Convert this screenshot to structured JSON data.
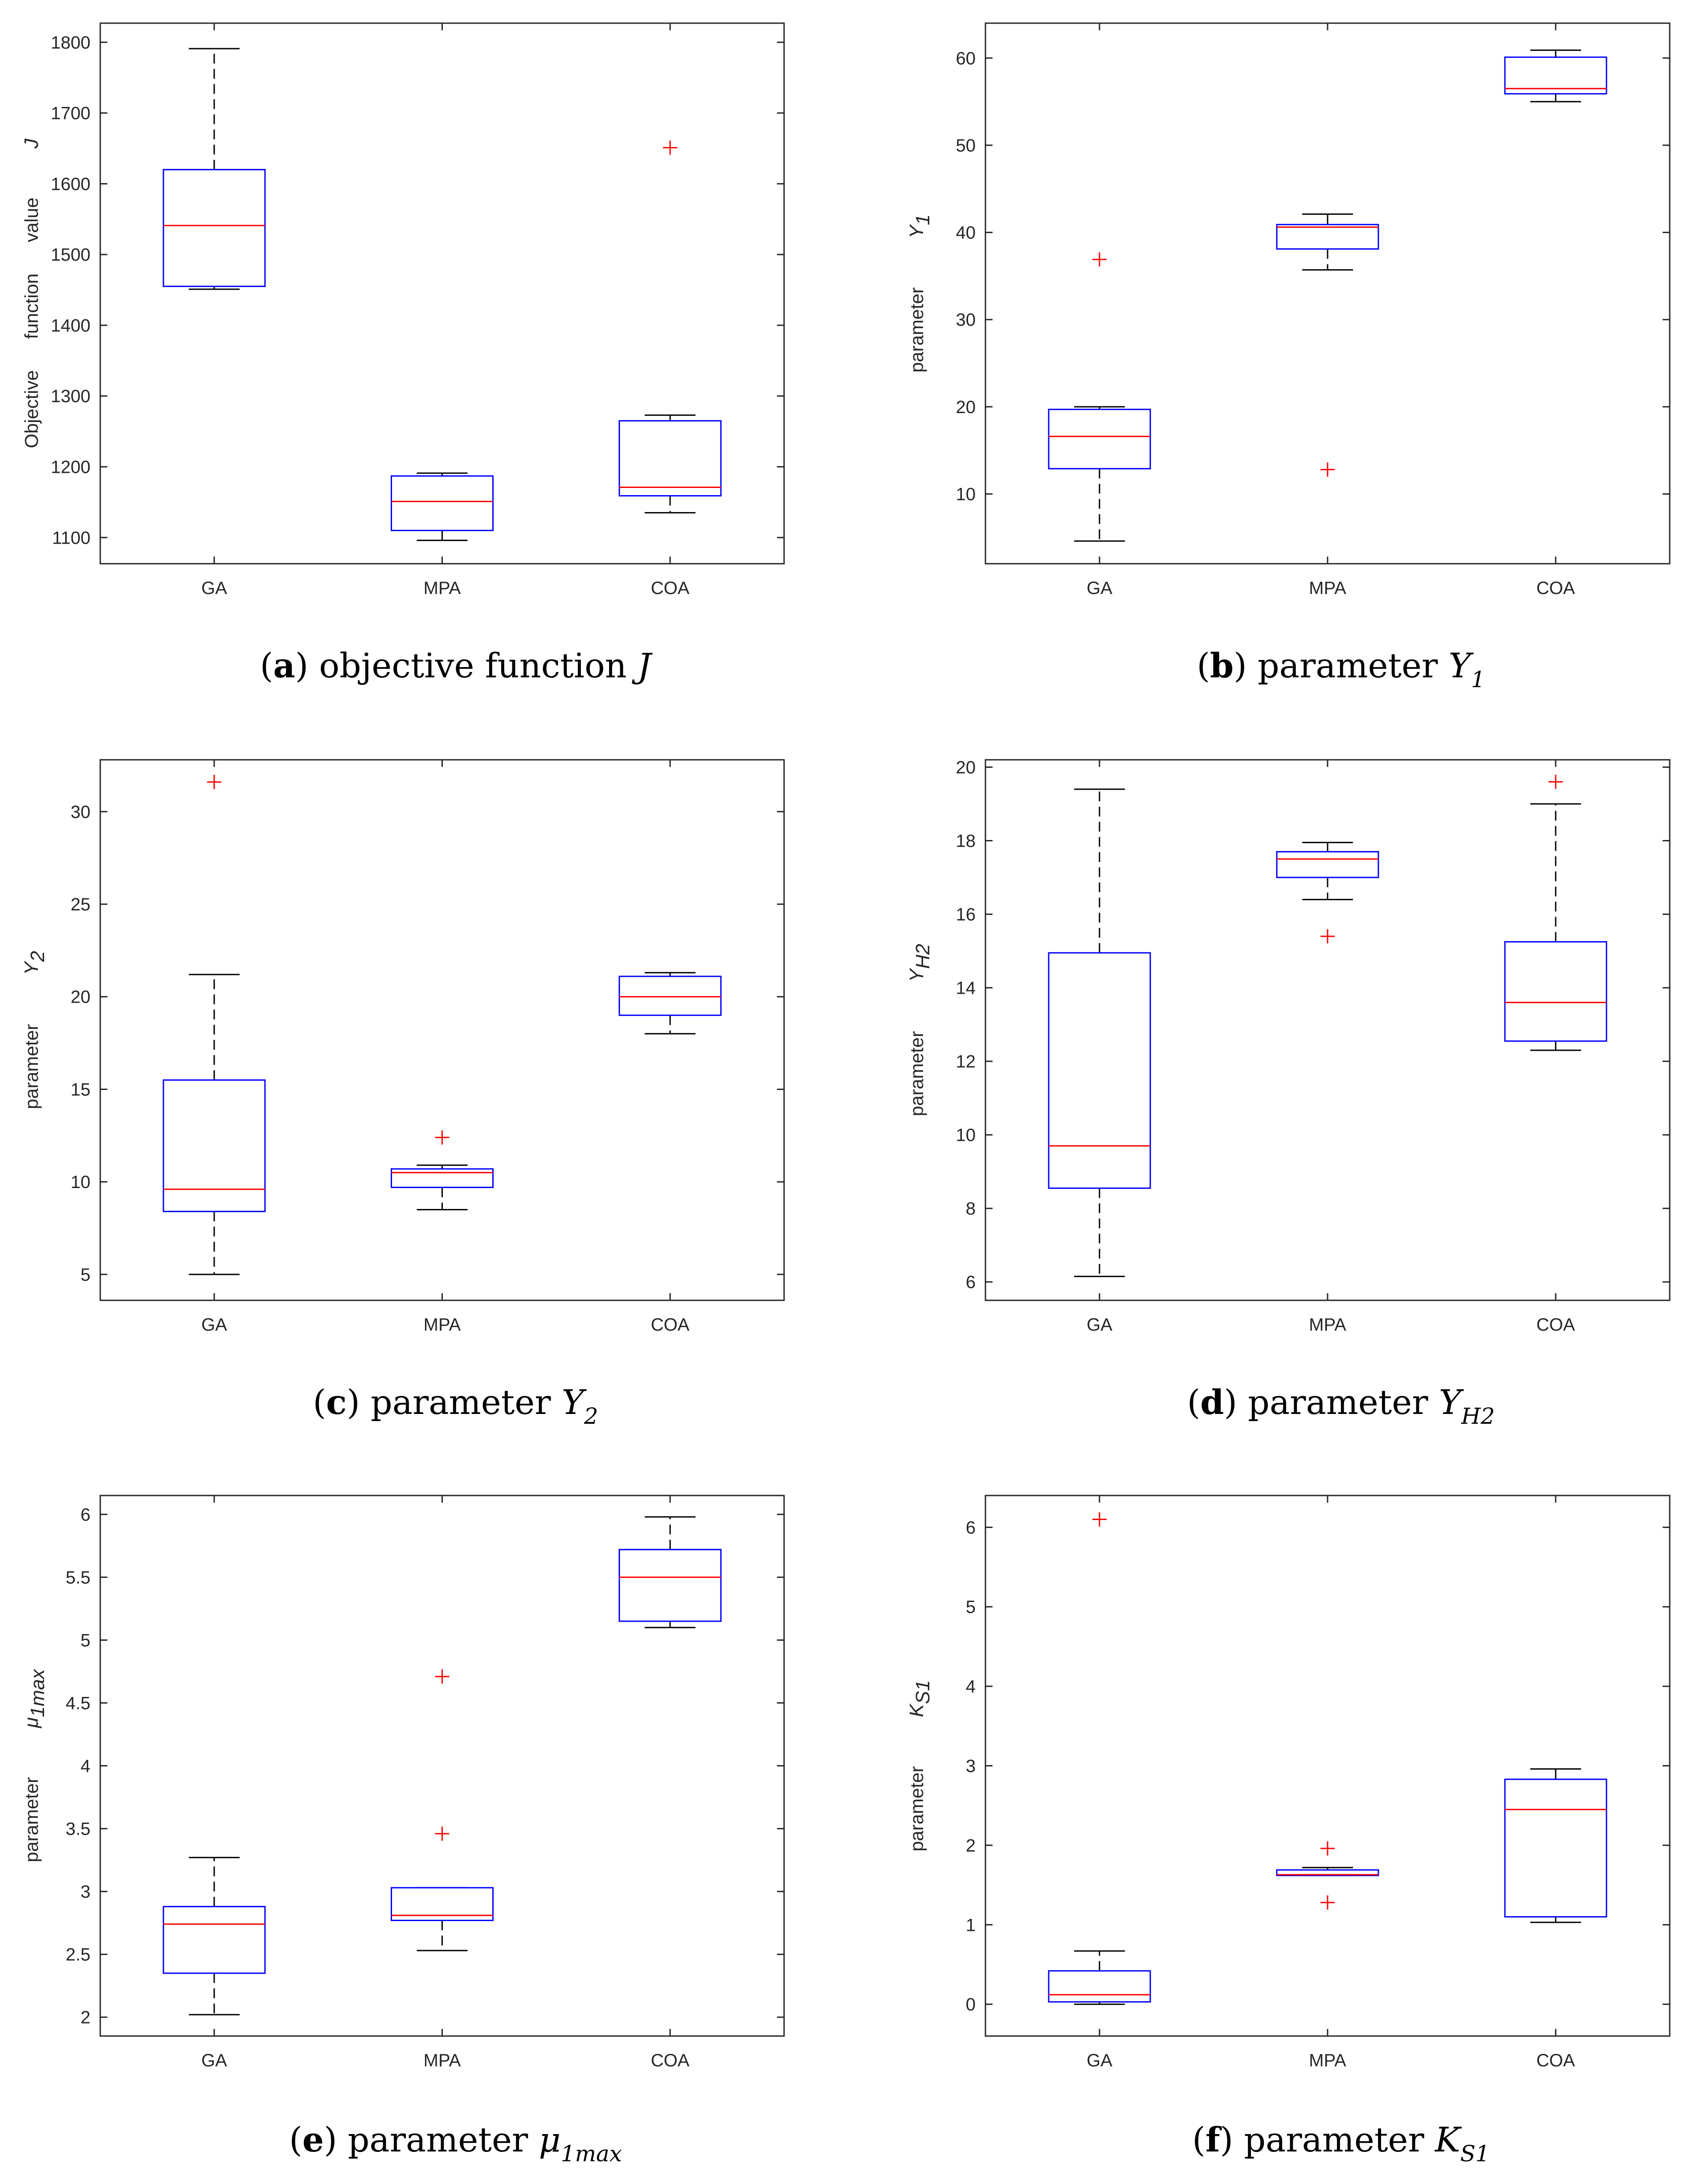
{
  "chart_data": [
    {
      "id": "a",
      "type": "box",
      "categories": [
        "GA",
        "MPA",
        "COA"
      ],
      "ylim": [
        1063,
        1827
      ],
      "yticks": [
        1100,
        1200,
        1300,
        1400,
        1500,
        1600,
        1700,
        1800
      ],
      "ylabel_words": [
        "Objective",
        "function",
        "value"
      ],
      "ylabel_symbol": "J",
      "ylabel_sub": "",
      "caption": {
        "letter": "a",
        "text": "objective function",
        "symbol": "J",
        "sub": ""
      },
      "boxes": [
        {
          "q1": 1455,
          "median": 1541,
          "q3": 1620,
          "whisker_low": 1451,
          "whisker_high": 1791,
          "outliers": []
        },
        {
          "q1": 1110,
          "median": 1151,
          "q3": 1187,
          "whisker_low": 1096,
          "whisker_high": 1191,
          "outliers": []
        },
        {
          "q1": 1159,
          "median": 1171,
          "q3": 1265,
          "whisker_low": 1135,
          "whisker_high": 1273,
          "outliers": [
            1651
          ]
        }
      ]
    },
    {
      "id": "b",
      "type": "box",
      "categories": [
        "GA",
        "MPA",
        "COA"
      ],
      "ylim": [
        2,
        64
      ],
      "yticks": [
        10,
        20,
        30,
        40,
        50,
        60
      ],
      "ylabel_words": [
        "parameter"
      ],
      "ylabel_symbol": "Y",
      "ylabel_sub": "1",
      "caption": {
        "letter": "b",
        "text": "parameter",
        "symbol": "Y",
        "sub": "1"
      },
      "boxes": [
        {
          "q1": 12.9,
          "median": 16.6,
          "q3": 19.7,
          "whisker_low": 4.6,
          "whisker_high": 20,
          "outliers": [
            36.9
          ]
        },
        {
          "q1": 38.1,
          "median": 40.6,
          "q3": 40.9,
          "whisker_low": 35.7,
          "whisker_high": 42.1,
          "outliers": [
            12.8
          ]
        },
        {
          "q1": 55.9,
          "median": 56.5,
          "q3": 60.1,
          "whisker_low": 55,
          "whisker_high": 60.9,
          "outliers": []
        }
      ]
    },
    {
      "id": "c",
      "type": "box",
      "categories": [
        "GA",
        "MPA",
        "COA"
      ],
      "ylim": [
        3.6,
        32.8
      ],
      "yticks": [
        5,
        10,
        15,
        20,
        25,
        30
      ],
      "ylabel_words": [
        "parameter"
      ],
      "ylabel_symbol": "Y",
      "ylabel_sub": "2",
      "caption": {
        "letter": "c",
        "text": "parameter",
        "symbol": "Y",
        "sub": "2"
      },
      "boxes": [
        {
          "q1": 8.4,
          "median": 9.6,
          "q3": 15.5,
          "whisker_low": 5,
          "whisker_high": 21.2,
          "outliers": [
            31.6
          ]
        },
        {
          "q1": 9.7,
          "median": 10.5,
          "q3": 10.7,
          "whisker_low": 8.5,
          "whisker_high": 10.9,
          "outliers": [
            12.4
          ]
        },
        {
          "q1": 19,
          "median": 20,
          "q3": 21.1,
          "whisker_low": 18,
          "whisker_high": 21.3,
          "outliers": []
        }
      ]
    },
    {
      "id": "d",
      "type": "box",
      "categories": [
        "GA",
        "MPA",
        "COA"
      ],
      "ylim": [
        5.5,
        20.2
      ],
      "yticks": [
        6,
        8,
        10,
        12,
        14,
        16,
        18,
        20
      ],
      "ylabel_words": [
        "parameter"
      ],
      "ylabel_symbol": "Y",
      "ylabel_sub": "H2",
      "caption": {
        "letter": "d",
        "text": "parameter",
        "symbol": "Y",
        "sub": "H2"
      },
      "boxes": [
        {
          "q1": 8.55,
          "median": 9.7,
          "q3": 14.95,
          "whisker_low": 6.15,
          "whisker_high": 19.4,
          "outliers": []
        },
        {
          "q1": 17,
          "median": 17.5,
          "q3": 17.7,
          "whisker_low": 16.4,
          "whisker_high": 17.95,
          "outliers": [
            15.4
          ]
        },
        {
          "q1": 12.55,
          "median": 13.6,
          "q3": 15.25,
          "whisker_low": 12.3,
          "whisker_high": 19,
          "outliers": [
            19.6
          ]
        }
      ]
    },
    {
      "id": "e",
      "type": "box",
      "categories": [
        "GA",
        "MPA",
        "COA"
      ],
      "ylim": [
        1.85,
        6.15
      ],
      "yticks": [
        2,
        2.5,
        3,
        3.5,
        4,
        4.5,
        5,
        5.5,
        6
      ],
      "ylabel_words": [
        "parameter"
      ],
      "ylabel_symbol": "μ",
      "ylabel_sub": "1max",
      "caption": {
        "letter": "e",
        "text": "parameter",
        "symbol": "μ",
        "sub": "1max"
      },
      "boxes": [
        {
          "q1": 2.35,
          "median": 2.74,
          "q3": 2.88,
          "whisker_low": 2.02,
          "whisker_high": 3.27,
          "outliers": []
        },
        {
          "q1": 2.77,
          "median": 2.81,
          "q3": 3.03,
          "whisker_low": 2.53,
          "whisker_high": 3.03,
          "outliers": [
            3.46,
            4.71
          ]
        },
        {
          "q1": 5.15,
          "median": 5.5,
          "q3": 5.72,
          "whisker_low": 5.1,
          "whisker_high": 5.98,
          "outliers": []
        }
      ]
    },
    {
      "id": "f",
      "type": "box",
      "categories": [
        "GA",
        "MPA",
        "COA"
      ],
      "ylim": [
        -0.4,
        6.4
      ],
      "yticks": [
        0,
        1,
        2,
        3,
        4,
        5,
        6
      ],
      "ylabel_words": [
        "parameter"
      ],
      "ylabel_symbol": "K",
      "ylabel_sub": "S1",
      "caption": {
        "letter": "f",
        "text": "parameter",
        "symbol": "K",
        "sub": "S1"
      },
      "boxes": [
        {
          "q1": 0.03,
          "median": 0.12,
          "q3": 0.42,
          "whisker_low": 0,
          "whisker_high": 0.67,
          "outliers": [
            6.1
          ]
        },
        {
          "q1": 1.62,
          "median": 1.63,
          "q3": 1.69,
          "whisker_low": 1.62,
          "whisker_high": 1.72,
          "outliers": [
            1.28,
            1.96
          ]
        },
        {
          "q1": 1.1,
          "median": 2.45,
          "q3": 2.83,
          "whisker_low": 1.03,
          "whisker_high": 2.96,
          "outliers": []
        }
      ]
    }
  ]
}
